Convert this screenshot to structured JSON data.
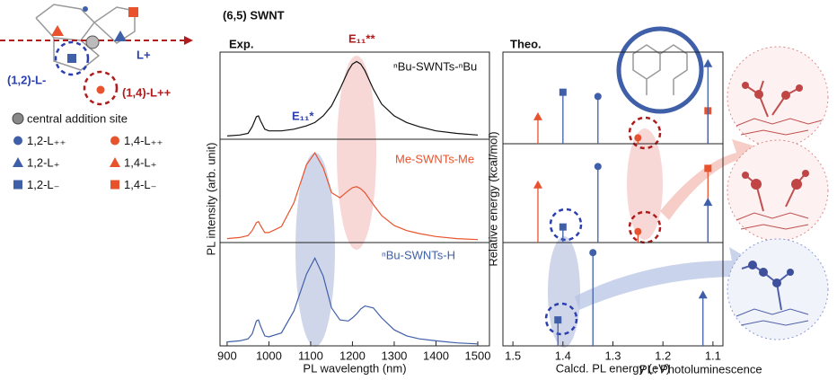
{
  "figure_title": "(6,5) SWNT",
  "footnote": "PL: Photoluminescence",
  "scheme": {
    "labels": [
      "(1,2)-L-",
      "(1,4)-L++",
      "L+"
    ]
  },
  "legend": [
    {
      "text": "central addition site",
      "marker": "sphere",
      "color": "#888888"
    },
    {
      "text": "1,2-L₊₊",
      "marker": "circle",
      "color": "#3f5fa8"
    },
    {
      "text": "1,4-L₊₊",
      "marker": "circle",
      "color": "#e8532e"
    },
    {
      "text": "1,2-L₊",
      "marker": "triangle",
      "color": "#3f5fa8"
    },
    {
      "text": "1,4-L₊",
      "marker": "triangle",
      "color": "#e8532e"
    },
    {
      "text": "1,2-L₋",
      "marker": "square",
      "color": "#3f5fa8"
    },
    {
      "text": "1,4-L₋",
      "marker": "square",
      "color": "#e8532e"
    }
  ],
  "chart_data": [
    {
      "type": "line",
      "title": "Exp.",
      "x_label": "PL wavelength (nm)",
      "y_label": "PL intensity (arb. unit)",
      "x": [
        900,
        930,
        950,
        960,
        970,
        975,
        980,
        990,
        1000,
        1030,
        1060,
        1090,
        1110,
        1130,
        1150,
        1170,
        1190,
        1200,
        1210,
        1220,
        1230,
        1250,
        1270,
        1300,
        1330,
        1360,
        1400,
        1450,
        1500
      ],
      "xlim": [
        883,
        1528
      ],
      "xticks": [
        900,
        1000,
        1100,
        1200,
        1300,
        1400,
        1500
      ],
      "ylim": [
        0,
        1
      ],
      "series": [
        {
          "name": "ⁿBu-SWNTs-ⁿBu",
          "color": "#111111",
          "values": [
            0.04,
            0.05,
            0.07,
            0.15,
            0.27,
            0.28,
            0.22,
            0.12,
            0.1,
            0.1,
            0.12,
            0.16,
            0.2,
            0.28,
            0.4,
            0.6,
            0.82,
            0.9,
            0.93,
            0.9,
            0.82,
            0.6,
            0.42,
            0.28,
            0.2,
            0.15,
            0.1,
            0.07,
            0.05
          ]
        },
        {
          "name": "Me-SWNTs-Me",
          "color": "#e8532e",
          "values": [
            0.04,
            0.05,
            0.07,
            0.12,
            0.2,
            0.21,
            0.17,
            0.1,
            0.1,
            0.16,
            0.4,
            0.78,
            0.9,
            0.75,
            0.5,
            0.45,
            0.52,
            0.55,
            0.56,
            0.54,
            0.5,
            0.38,
            0.27,
            0.17,
            0.12,
            0.09,
            0.06,
            0.04,
            0.03
          ]
        },
        {
          "name": "ⁿBu-SWNTs-H",
          "color": "#3f5fa8",
          "values": [
            0.04,
            0.05,
            0.07,
            0.12,
            0.25,
            0.26,
            0.2,
            0.1,
            0.09,
            0.13,
            0.35,
            0.72,
            0.88,
            0.7,
            0.38,
            0.26,
            0.25,
            0.28,
            0.32,
            0.37,
            0.4,
            0.38,
            0.28,
            0.16,
            0.1,
            0.07,
            0.05,
            0.03,
            0.02
          ]
        }
      ],
      "annotations": [
        {
          "text": "E₁₁**",
          "color": "#b01c1c"
        },
        {
          "text": "E₁₁*",
          "color": "#2a3fb0"
        }
      ]
    },
    {
      "type": "stem",
      "title": "Theo.",
      "x_label": "Calcd. PL energy (eV)",
      "y_label": "Relative energy (kcal/mol)",
      "xlim": [
        1.52,
        1.08
      ],
      "xticks": [
        1.5,
        1.4,
        1.3,
        1.2,
        1.1
      ],
      "ylim": [
        0,
        10
      ],
      "panels": [
        {
          "points": [
            {
              "x": 1.45,
              "y": 3.2,
              "marker": "triangle",
              "color": "#e8532e"
            },
            {
              "x": 1.4,
              "y": 6.1,
              "marker": "square",
              "color": "#3f5fa8"
            },
            {
              "x": 1.33,
              "y": 5.6,
              "marker": "circle",
              "color": "#3f5fa8"
            },
            {
              "x": 1.25,
              "y": 0.7,
              "marker": "circle",
              "color": "#e8532e"
            },
            {
              "x": 1.11,
              "y": 3.9,
              "marker": "square",
              "color": "#e8532e"
            },
            {
              "x": 1.11,
              "y": 9.5,
              "marker": "triangle",
              "color": "#3f5fa8"
            }
          ]
        },
        {
          "points": [
            {
              "x": 1.45,
              "y": 6.3,
              "marker": "triangle",
              "color": "#e8532e"
            },
            {
              "x": 1.33,
              "y": 8.3,
              "marker": "circle",
              "color": "#3f5fa8"
            },
            {
              "x": 1.4,
              "y": 1.7,
              "marker": "square",
              "color": "#3f5fa8"
            },
            {
              "x": 1.25,
              "y": 1.2,
              "marker": "circle",
              "color": "#e8532e"
            },
            {
              "x": 1.11,
              "y": 8.1,
              "marker": "square",
              "color": "#e8532e"
            },
            {
              "x": 1.11,
              "y": 4.4,
              "marker": "triangle",
              "color": "#3f5fa8"
            }
          ]
        },
        {
          "points": [
            {
              "x": 1.34,
              "y": 9.7,
              "marker": "circle",
              "color": "#3f5fa8"
            },
            {
              "x": 1.41,
              "y": 2.7,
              "marker": "square",
              "color": "#3f5fa8"
            },
            {
              "x": 1.12,
              "y": 5.3,
              "marker": "triangle",
              "color": "#3f5fa8"
            }
          ]
        }
      ]
    }
  ]
}
